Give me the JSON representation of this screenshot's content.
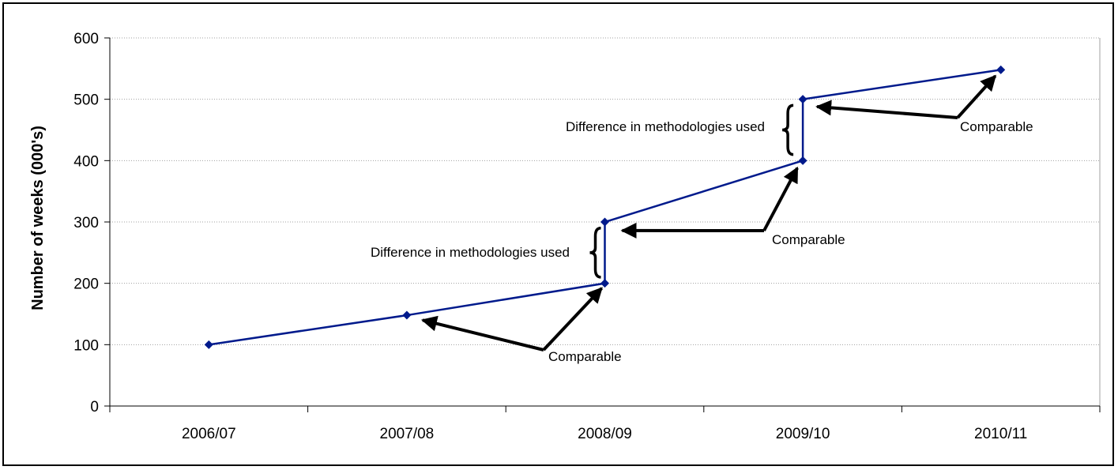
{
  "chart_data": {
    "type": "line",
    "categories": [
      "2006/07",
      "2007/08",
      "2008/09",
      "2008/09",
      "2009/10",
      "2009/10",
      "2010/11"
    ],
    "x_axis_labels": [
      "2006/07",
      "2007/08",
      "2008/09",
      "2009/10",
      "2010/11"
    ],
    "series": [
      {
        "values": [
          100,
          148,
          200,
          300,
          400,
          500,
          548
        ],
        "color": "#001a8c"
      }
    ],
    "ylabel": "Number of weeks (000's)",
    "xlabel": "",
    "ylim": [
      0,
      600
    ],
    "yticks": [
      0,
      100,
      200,
      300,
      400,
      500,
      600
    ],
    "grid": "horizontal dotted",
    "annotations": [
      {
        "text": "Difference in methodologies used",
        "kind": "brace",
        "between_values": [
          200,
          300
        ],
        "category": "2008/09"
      },
      {
        "text": "Difference in methodologies used",
        "kind": "brace",
        "between_values": [
          400,
          500
        ],
        "category": "2009/10"
      },
      {
        "text": "Comparable",
        "kind": "arrows",
        "points": [
          "2007/08",
          "2008/09"
        ]
      },
      {
        "text": "Comparable",
        "kind": "arrows",
        "points": [
          "2008/09",
          "2009/10"
        ]
      },
      {
        "text": "Comparable",
        "kind": "arrows",
        "points": [
          "2009/10",
          "2010/11"
        ]
      }
    ]
  }
}
